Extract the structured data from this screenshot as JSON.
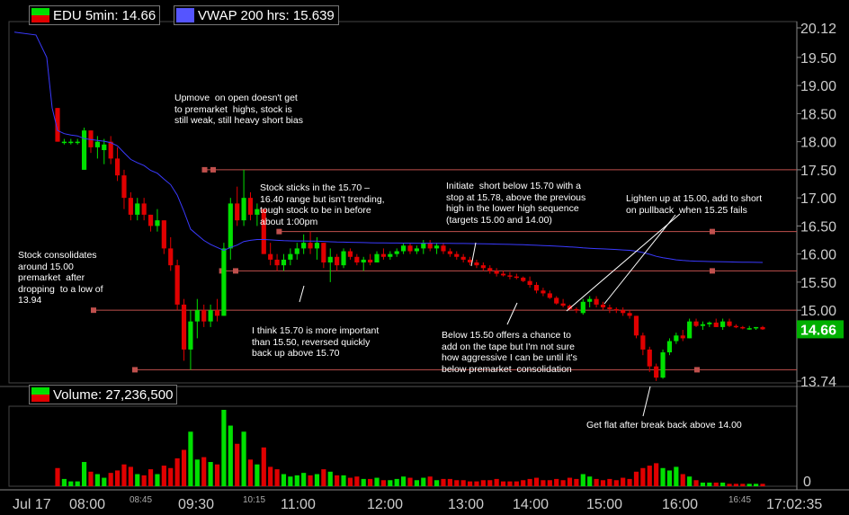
{
  "legend": {
    "price": "EDU 5min: 14.66",
    "vwap": "VWAP 200 hrs: 15.639",
    "volume": "Volume: 27,236,500"
  },
  "colors": {
    "up": "#00e000",
    "down": "#e00000",
    "vwap": "#3a3aff",
    "level": "#c0504d",
    "axis_text": "#cccccc",
    "last_price_bg": "#00b000"
  },
  "chart_data": {
    "type": "candlestick",
    "y_ticks": [
      "20.12",
      "19.50",
      "19.00",
      "18.50",
      "18.00",
      "17.50",
      "17.00",
      "16.50",
      "16.00",
      "15.50",
      "15.00",
      "14.66",
      "13.74"
    ],
    "last_price": "14.66",
    "volume_ticks": [
      "0"
    ],
    "x_ticks": [
      {
        "label": "Jul 17",
        "small": false
      },
      {
        "label": "08:00",
        "small": false
      },
      {
        "label": "08:45",
        "small": true
      },
      {
        "label": "09:30",
        "small": false
      },
      {
        "label": "10:15",
        "small": true
      },
      {
        "label": "11:00",
        "small": false
      },
      {
        "label": "12:00",
        "small": false
      },
      {
        "label": "13:00",
        "small": false
      },
      {
        "label": "14:00",
        "small": false
      },
      {
        "label": "15:00",
        "small": false
      },
      {
        "label": "16:00",
        "small": false
      },
      {
        "label": "16:45",
        "small": true
      },
      {
        "label": "17:02:35",
        "small": false
      }
    ],
    "levels": [
      {
        "price": 17.5,
        "from": "09:40",
        "to": "17:02"
      },
      {
        "price": 16.4,
        "from": "10:45",
        "to": "16:25"
      },
      {
        "price": 15.7,
        "from": "09:55",
        "to": "17:02"
      },
      {
        "price": 15.0,
        "from": "07:45",
        "to": "17:02"
      },
      {
        "price": 13.94,
        "from": "07:30",
        "to": "17:02"
      }
    ],
    "annotations": [
      {
        "text": "Upmove  on open doesn't get\nto premarket  highs, stock is\nstill weak, still heavy short bias"
      },
      {
        "text": "Stock consolidates\naround 15.00\npremarket  after\ndropping  to a low of\n13.94"
      },
      {
        "text": "Stock sticks in the 15.70 –\n16.40 range but isn't trending,\ntough stock to be in before\nabout 1:00pm"
      },
      {
        "text": "I think 15.70 is more important\nthan 15.50, reversed quickly\nback up above 15.70"
      },
      {
        "text": "Initiate  short below 15.70 with a\nstop at 15.78, above the previous\nhigh in the lower high sequence\n(targets 15.00 and 14.00)"
      },
      {
        "text": "Lighten up at 15.00, add to short\non pullback  when 15.25 fails"
      },
      {
        "text": "Below 15.50 offers a chance to\nadd on the tape but I'm not sure\nhow aggressive I can be until it's\nbelow premarket  consolidation"
      },
      {
        "text": "Get flat after break back above 14.00"
      }
    ],
    "candles": [
      {
        "o": 18.6,
        "h": 18.6,
        "l": 18.0,
        "c": 18.0,
        "v": 1.5
      },
      {
        "o": 18.0,
        "h": 18.05,
        "l": 17.95,
        "c": 18.0,
        "v": 0.6
      },
      {
        "o": 18.0,
        "h": 18.05,
        "l": 17.95,
        "c": 18.0,
        "v": 0.4
      },
      {
        "o": 18.0,
        "h": 18.05,
        "l": 17.95,
        "c": 18.0,
        "v": 0.4
      },
      {
        "o": 17.5,
        "h": 18.25,
        "l": 17.5,
        "c": 18.2,
        "v": 2.0
      },
      {
        "o": 18.2,
        "h": 18.2,
        "l": 17.8,
        "c": 17.9,
        "v": 1.2
      },
      {
        "o": 17.9,
        "h": 18.1,
        "l": 17.7,
        "c": 18.0,
        "v": 1.0
      },
      {
        "o": 17.85,
        "h": 18.05,
        "l": 17.6,
        "c": 17.95,
        "v": 0.7
      },
      {
        "o": 18.0,
        "h": 18.1,
        "l": 17.6,
        "c": 17.7,
        "v": 1.1
      },
      {
        "o": 17.7,
        "h": 17.9,
        "l": 17.3,
        "c": 17.4,
        "v": 1.3
      },
      {
        "o": 17.4,
        "h": 17.5,
        "l": 16.8,
        "c": 17.0,
        "v": 1.8
      },
      {
        "o": 17.0,
        "h": 17.1,
        "l": 16.6,
        "c": 16.7,
        "v": 1.6
      },
      {
        "o": 16.7,
        "h": 17.0,
        "l": 16.6,
        "c": 16.9,
        "v": 1.0
      },
      {
        "o": 16.9,
        "h": 17.0,
        "l": 16.6,
        "c": 16.7,
        "v": 0.9
      },
      {
        "o": 16.7,
        "h": 16.7,
        "l": 16.4,
        "c": 16.5,
        "v": 1.4
      },
      {
        "o": 16.5,
        "h": 16.8,
        "l": 16.4,
        "c": 16.6,
        "v": 1.0
      },
      {
        "o": 16.6,
        "h": 16.6,
        "l": 16.0,
        "c": 16.1,
        "v": 1.7
      },
      {
        "o": 16.1,
        "h": 16.3,
        "l": 15.7,
        "c": 15.8,
        "v": 1.5
      },
      {
        "o": 15.8,
        "h": 15.9,
        "l": 15.0,
        "c": 15.1,
        "v": 2.3
      },
      {
        "o": 15.1,
        "h": 15.2,
        "l": 14.1,
        "c": 14.3,
        "v": 3.0
      },
      {
        "o": 14.3,
        "h": 15.0,
        "l": 13.94,
        "c": 14.8,
        "v": 4.5
      },
      {
        "o": 14.8,
        "h": 15.2,
        "l": 14.5,
        "c": 15.0,
        "v": 2.2
      },
      {
        "o": 15.0,
        "h": 15.1,
        "l": 14.7,
        "c": 14.8,
        "v": 2.4
      },
      {
        "o": 14.8,
        "h": 15.1,
        "l": 14.7,
        "c": 15.0,
        "v": 2.0
      },
      {
        "o": 15.0,
        "h": 15.2,
        "l": 14.8,
        "c": 14.9,
        "v": 1.8
      },
      {
        "o": 14.9,
        "h": 16.2,
        "l": 14.9,
        "c": 16.1,
        "v": 6.3
      },
      {
        "o": 16.1,
        "h": 17.0,
        "l": 15.9,
        "c": 16.9,
        "v": 5.0
      },
      {
        "o": 16.9,
        "h": 17.2,
        "l": 16.5,
        "c": 16.6,
        "v": 3.5
      },
      {
        "o": 16.6,
        "h": 17.5,
        "l": 16.5,
        "c": 17.0,
        "v": 4.5
      },
      {
        "o": 17.0,
        "h": 17.1,
        "l": 16.6,
        "c": 16.7,
        "v": 2.2
      },
      {
        "o": 16.7,
        "h": 16.9,
        "l": 16.5,
        "c": 16.8,
        "v": 1.8
      },
      {
        "o": 16.8,
        "h": 16.8,
        "l": 16.0,
        "c": 16.0,
        "v": 3.2
      },
      {
        "o": 16.0,
        "h": 16.2,
        "l": 15.8,
        "c": 15.9,
        "v": 1.6
      },
      {
        "o": 15.9,
        "h": 16.0,
        "l": 15.7,
        "c": 15.8,
        "v": 1.4
      },
      {
        "o": 15.8,
        "h": 16.0,
        "l": 15.7,
        "c": 15.9,
        "v": 1.0
      },
      {
        "o": 15.9,
        "h": 16.1,
        "l": 15.8,
        "c": 16.0,
        "v": 0.8
      },
      {
        "o": 16.0,
        "h": 16.2,
        "l": 15.9,
        "c": 16.1,
        "v": 0.9
      },
      {
        "o": 16.1,
        "h": 16.35,
        "l": 16.0,
        "c": 16.2,
        "v": 1.1
      },
      {
        "o": 16.2,
        "h": 16.4,
        "l": 16.0,
        "c": 16.1,
        "v": 0.9
      },
      {
        "o": 16.1,
        "h": 16.3,
        "l": 15.9,
        "c": 16.2,
        "v": 1.0
      },
      {
        "o": 16.2,
        "h": 16.2,
        "l": 15.75,
        "c": 15.85,
        "v": 1.4
      },
      {
        "o": 15.85,
        "h": 16.1,
        "l": 15.5,
        "c": 15.95,
        "v": 1.2
      },
      {
        "o": 15.95,
        "h": 16.0,
        "l": 15.7,
        "c": 15.8,
        "v": 0.9
      },
      {
        "o": 15.8,
        "h": 16.1,
        "l": 15.75,
        "c": 16.05,
        "v": 0.9
      },
      {
        "o": 16.05,
        "h": 16.1,
        "l": 15.9,
        "c": 15.95,
        "v": 0.7
      },
      {
        "o": 15.95,
        "h": 16.0,
        "l": 15.8,
        "c": 15.85,
        "v": 0.8
      },
      {
        "o": 15.85,
        "h": 15.95,
        "l": 15.7,
        "c": 15.9,
        "v": 0.6
      },
      {
        "o": 15.9,
        "h": 16.0,
        "l": 15.8,
        "c": 15.85,
        "v": 0.6
      },
      {
        "o": 15.85,
        "h": 16.05,
        "l": 15.85,
        "c": 16.0,
        "v": 0.7
      },
      {
        "o": 16.0,
        "h": 16.1,
        "l": 15.9,
        "c": 15.95,
        "v": 0.5
      },
      {
        "o": 15.95,
        "h": 16.05,
        "l": 15.9,
        "c": 16.0,
        "v": 0.5
      },
      {
        "o": 16.0,
        "h": 16.1,
        "l": 15.95,
        "c": 16.05,
        "v": 0.6
      },
      {
        "o": 16.05,
        "h": 16.2,
        "l": 16.0,
        "c": 16.15,
        "v": 0.8
      },
      {
        "o": 16.15,
        "h": 16.2,
        "l": 16.0,
        "c": 16.05,
        "v": 0.7
      },
      {
        "o": 16.05,
        "h": 16.15,
        "l": 16.0,
        "c": 16.1,
        "v": 0.5
      },
      {
        "o": 16.1,
        "h": 16.25,
        "l": 16.0,
        "c": 16.2,
        "v": 0.7
      },
      {
        "o": 16.2,
        "h": 16.25,
        "l": 16.05,
        "c": 16.1,
        "v": 0.8
      },
      {
        "o": 16.1,
        "h": 16.2,
        "l": 16.0,
        "c": 16.15,
        "v": 0.5
      },
      {
        "o": 16.15,
        "h": 16.2,
        "l": 16.0,
        "c": 16.05,
        "v": 0.6
      },
      {
        "o": 16.05,
        "h": 16.1,
        "l": 15.95,
        "c": 16.0,
        "v": 0.6
      },
      {
        "o": 16.0,
        "h": 16.05,
        "l": 15.9,
        "c": 15.95,
        "v": 0.5
      },
      {
        "o": 15.95,
        "h": 16.0,
        "l": 15.85,
        "c": 15.9,
        "v": 0.5
      },
      {
        "o": 15.9,
        "h": 15.95,
        "l": 15.8,
        "c": 15.85,
        "v": 0.4
      },
      {
        "o": 15.85,
        "h": 15.9,
        "l": 15.75,
        "c": 15.8,
        "v": 0.4
      },
      {
        "o": 15.8,
        "h": 15.85,
        "l": 15.7,
        "c": 15.75,
        "v": 0.5
      },
      {
        "o": 15.75,
        "h": 15.8,
        "l": 15.65,
        "c": 15.7,
        "v": 0.5
      },
      {
        "o": 15.7,
        "h": 15.75,
        "l": 15.6,
        "c": 15.65,
        "v": 0.6
      },
      {
        "o": 15.65,
        "h": 15.7,
        "l": 15.6,
        "c": 15.62,
        "v": 0.4
      },
      {
        "o": 15.62,
        "h": 15.68,
        "l": 15.55,
        "c": 15.6,
        "v": 0.4
      },
      {
        "o": 15.6,
        "h": 15.65,
        "l": 15.55,
        "c": 15.58,
        "v": 0.4
      },
      {
        "o": 15.58,
        "h": 15.6,
        "l": 15.5,
        "c": 15.52,
        "v": 0.5
      },
      {
        "o": 15.52,
        "h": 15.6,
        "l": 15.4,
        "c": 15.45,
        "v": 0.6
      },
      {
        "o": 15.45,
        "h": 15.5,
        "l": 15.3,
        "c": 15.35,
        "v": 0.7
      },
      {
        "o": 15.35,
        "h": 15.4,
        "l": 15.25,
        "c": 15.3,
        "v": 0.5
      },
      {
        "o": 15.3,
        "h": 15.35,
        "l": 15.2,
        "c": 15.22,
        "v": 0.5
      },
      {
        "o": 15.22,
        "h": 15.25,
        "l": 15.1,
        "c": 15.12,
        "v": 0.6
      },
      {
        "o": 15.12,
        "h": 15.2,
        "l": 15.05,
        "c": 15.08,
        "v": 0.5
      },
      {
        "o": 15.08,
        "h": 15.1,
        "l": 15.0,
        "c": 15.02,
        "v": 0.7
      },
      {
        "o": 15.02,
        "h": 15.05,
        "l": 14.95,
        "c": 15.0,
        "v": 0.6
      },
      {
        "o": 14.95,
        "h": 15.2,
        "l": 14.92,
        "c": 15.15,
        "v": 1.0
      },
      {
        "o": 15.15,
        "h": 15.25,
        "l": 15.05,
        "c": 15.2,
        "v": 0.8
      },
      {
        "o": 15.2,
        "h": 15.25,
        "l": 15.05,
        "c": 15.1,
        "v": 0.6
      },
      {
        "o": 15.1,
        "h": 15.15,
        "l": 15.0,
        "c": 15.05,
        "v": 0.5
      },
      {
        "o": 15.05,
        "h": 15.1,
        "l": 14.95,
        "c": 15.02,
        "v": 0.6
      },
      {
        "o": 15.02,
        "h": 15.05,
        "l": 14.95,
        "c": 15.0,
        "v": 0.5
      },
      {
        "o": 15.0,
        "h": 15.05,
        "l": 14.9,
        "c": 14.95,
        "v": 0.7
      },
      {
        "o": 14.95,
        "h": 15.0,
        "l": 14.85,
        "c": 14.9,
        "v": 0.6
      },
      {
        "o": 14.9,
        "h": 14.9,
        "l": 14.5,
        "c": 14.55,
        "v": 1.2
      },
      {
        "o": 14.55,
        "h": 14.6,
        "l": 14.2,
        "c": 14.3,
        "v": 1.5
      },
      {
        "o": 14.3,
        "h": 14.35,
        "l": 13.9,
        "c": 14.0,
        "v": 1.7
      },
      {
        "o": 14.0,
        "h": 14.05,
        "l": 13.74,
        "c": 13.8,
        "v": 1.9
      },
      {
        "o": 13.8,
        "h": 14.3,
        "l": 13.78,
        "c": 14.25,
        "v": 1.5
      },
      {
        "o": 14.25,
        "h": 14.5,
        "l": 14.2,
        "c": 14.45,
        "v": 1.3
      },
      {
        "o": 14.45,
        "h": 14.6,
        "l": 14.4,
        "c": 14.55,
        "v": 1.6
      },
      {
        "o": 14.55,
        "h": 14.65,
        "l": 14.45,
        "c": 14.5,
        "v": 1.0
      },
      {
        "o": 14.5,
        "h": 14.85,
        "l": 14.5,
        "c": 14.8,
        "v": 0.8
      },
      {
        "o": 14.8,
        "h": 14.85,
        "l": 14.7,
        "c": 14.72,
        "v": 0.5
      },
      {
        "o": 14.72,
        "h": 14.8,
        "l": 14.65,
        "c": 14.75,
        "v": 0.3
      },
      {
        "o": 14.75,
        "h": 14.8,
        "l": 14.7,
        "c": 14.78,
        "v": 0.3
      },
      {
        "o": 14.78,
        "h": 14.85,
        "l": 14.7,
        "c": 14.7,
        "v": 0.3
      },
      {
        "o": 14.7,
        "h": 14.85,
        "l": 14.65,
        "c": 14.8,
        "v": 0.3
      },
      {
        "o": 14.8,
        "h": 14.85,
        "l": 14.7,
        "c": 14.72,
        "v": 0.2
      },
      {
        "o": 14.72,
        "h": 14.75,
        "l": 14.68,
        "c": 14.7,
        "v": 0.2
      },
      {
        "o": 14.7,
        "h": 14.72,
        "l": 14.66,
        "c": 14.68,
        "v": 0.2
      },
      {
        "o": 14.68,
        "h": 14.72,
        "l": 14.65,
        "c": 14.68,
        "v": 0.2
      },
      {
        "o": 14.68,
        "h": 14.7,
        "l": 14.65,
        "c": 14.7,
        "v": 0.2
      },
      {
        "o": 14.7,
        "h": 14.72,
        "l": 14.65,
        "c": 14.66,
        "v": 0.2
      }
    ]
  }
}
